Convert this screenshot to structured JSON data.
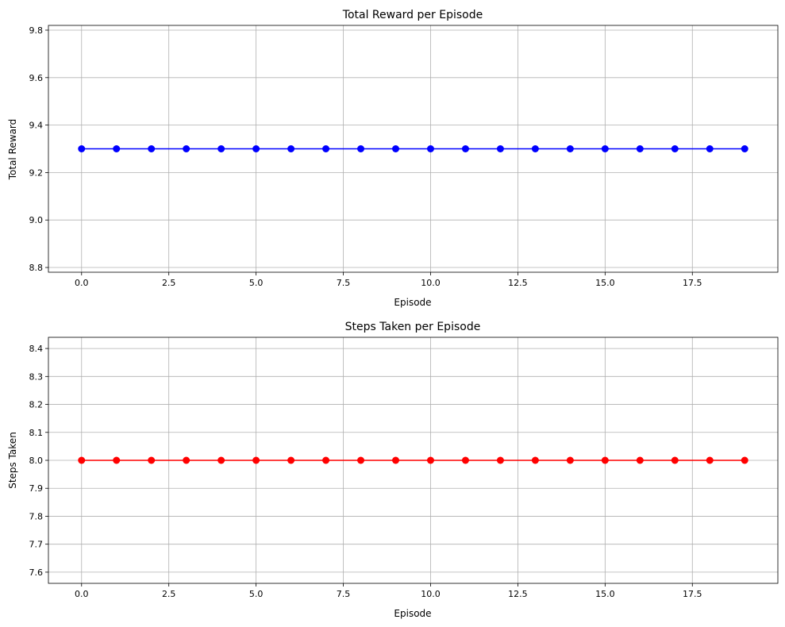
{
  "chart_data": [
    {
      "type": "line",
      "title": "Total Reward per Episode",
      "xlabel": "Episode",
      "ylabel": "Total Reward",
      "x": [
        0,
        1,
        2,
        3,
        4,
        5,
        6,
        7,
        8,
        9,
        10,
        11,
        12,
        13,
        14,
        15,
        16,
        17,
        18,
        19
      ],
      "series": [
        {
          "values": [
            9.3,
            9.3,
            9.3,
            9.3,
            9.3,
            9.3,
            9.3,
            9.3,
            9.3,
            9.3,
            9.3,
            9.3,
            9.3,
            9.3,
            9.3,
            9.3,
            9.3,
            9.3,
            9.3,
            9.3
          ],
          "color": "#0000ff",
          "marker": "circle"
        }
      ],
      "xlim": [
        -0.95,
        19.95
      ],
      "ylim": [
        8.78,
        9.82
      ],
      "xticks": [
        0.0,
        2.5,
        5.0,
        7.5,
        10.0,
        12.5,
        15.0,
        17.5
      ],
      "xtick_labels": [
        "0.0",
        "2.5",
        "5.0",
        "7.5",
        "10.0",
        "12.5",
        "15.0",
        "17.5"
      ],
      "yticks": [
        8.8,
        9.0,
        9.2,
        9.4,
        9.6,
        9.8
      ],
      "ytick_labels": [
        "8.8",
        "9.0",
        "9.2",
        "9.4",
        "9.6",
        "9.8"
      ],
      "grid": true
    },
    {
      "type": "line",
      "title": "Steps Taken per Episode",
      "xlabel": "Episode",
      "ylabel": "Steps Taken",
      "x": [
        0,
        1,
        2,
        3,
        4,
        5,
        6,
        7,
        8,
        9,
        10,
        11,
        12,
        13,
        14,
        15,
        16,
        17,
        18,
        19
      ],
      "series": [
        {
          "values": [
            8,
            8,
            8,
            8,
            8,
            8,
            8,
            8,
            8,
            8,
            8,
            8,
            8,
            8,
            8,
            8,
            8,
            8,
            8,
            8
          ],
          "color": "#ff0000",
          "marker": "circle"
        }
      ],
      "xlim": [
        -0.95,
        19.95
      ],
      "ylim": [
        7.56,
        8.44
      ],
      "xticks": [
        0.0,
        2.5,
        5.0,
        7.5,
        10.0,
        12.5,
        15.0,
        17.5
      ],
      "xtick_labels": [
        "0.0",
        "2.5",
        "5.0",
        "7.5",
        "10.0",
        "12.5",
        "15.0",
        "17.5"
      ],
      "yticks": [
        7.6,
        7.7,
        7.8,
        7.9,
        8.0,
        8.1,
        8.2,
        8.3,
        8.4
      ],
      "ytick_labels": [
        "7.6",
        "7.7",
        "7.8",
        "7.9",
        "8.0",
        "8.1",
        "8.2",
        "8.3",
        "8.4"
      ],
      "grid": true
    }
  ]
}
